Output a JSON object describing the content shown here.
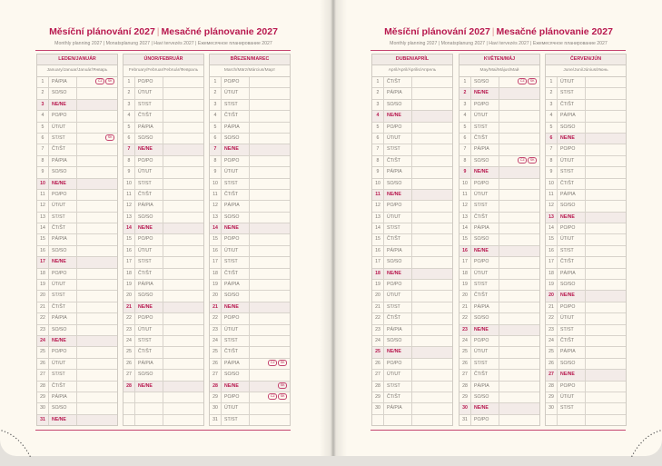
{
  "title_cz": "Měsíční plánování 2027",
  "title_sk": "Mesačné plánovanie 2027",
  "subtitle": "Monthly planning 2027 | Monatsplanung 2027 | Havi tervezés 2027 | Ежемесячное планирование 2027",
  "colors": {
    "accent": "#b8194f",
    "paper": "#fdf9f0",
    "grid": "#cfcac2"
  },
  "months": [
    {
      "name": "LEDEN/JANUÁR",
      "sub": "January/Januar/Január/Январь",
      "badges": {
        "1": [
          "CZ",
          "SK"
        ],
        "6": [
          "SK"
        ]
      },
      "days": [
        [
          "1",
          "PÁ/PIA"
        ],
        [
          "2",
          "SO/SO"
        ],
        [
          "3",
          "NE/NE"
        ],
        [
          "4",
          "PO/PO"
        ],
        [
          "5",
          "ÚT/UT"
        ],
        [
          "6",
          "ST/ST"
        ],
        [
          "7",
          "ČT/ŠT"
        ],
        [
          "8",
          "PÁ/PIA"
        ],
        [
          "9",
          "SO/SO"
        ],
        [
          "10",
          "NE/NE"
        ],
        [
          "11",
          "PO/PO"
        ],
        [
          "12",
          "ÚT/UT"
        ],
        [
          "13",
          "ST/ST"
        ],
        [
          "14",
          "ČT/ŠT"
        ],
        [
          "15",
          "PÁ/PIA"
        ],
        [
          "16",
          "SO/SO"
        ],
        [
          "17",
          "NE/NE"
        ],
        [
          "18",
          "PO/PO"
        ],
        [
          "19",
          "ÚT/UT"
        ],
        [
          "20",
          "ST/ST"
        ],
        [
          "21",
          "ČT/ŠT"
        ],
        [
          "22",
          "PÁ/PIA"
        ],
        [
          "23",
          "SO/SO"
        ],
        [
          "24",
          "NE/NE"
        ],
        [
          "25",
          "PO/PO"
        ],
        [
          "26",
          "ÚT/UT"
        ],
        [
          "27",
          "ST/ST"
        ],
        [
          "28",
          "ČT/ŠT"
        ],
        [
          "29",
          "PÁ/PIA"
        ],
        [
          "30",
          "SO/SO"
        ],
        [
          "31",
          "NE/NE"
        ]
      ]
    },
    {
      "name": "ÚNOR/FEBRUÁR",
      "sub": "February/Februar/Február/Февраль",
      "badges": {},
      "days": [
        [
          "1",
          "PO/PO"
        ],
        [
          "2",
          "ÚT/UT"
        ],
        [
          "3",
          "ST/ST"
        ],
        [
          "4",
          "ČT/ŠT"
        ],
        [
          "5",
          "PÁ/PIA"
        ],
        [
          "6",
          "SO/SO"
        ],
        [
          "7",
          "NE/NE"
        ],
        [
          "8",
          "PO/PO"
        ],
        [
          "9",
          "ÚT/UT"
        ],
        [
          "10",
          "ST/ST"
        ],
        [
          "11",
          "ČT/ŠT"
        ],
        [
          "12",
          "PÁ/PIA"
        ],
        [
          "13",
          "SO/SO"
        ],
        [
          "14",
          "NE/NE"
        ],
        [
          "15",
          "PO/PO"
        ],
        [
          "16",
          "ÚT/UT"
        ],
        [
          "17",
          "ST/ST"
        ],
        [
          "18",
          "ČT/ŠT"
        ],
        [
          "19",
          "PÁ/PIA"
        ],
        [
          "20",
          "SO/SO"
        ],
        [
          "21",
          "NE/NE"
        ],
        [
          "22",
          "PO/PO"
        ],
        [
          "23",
          "ÚT/UT"
        ],
        [
          "24",
          "ST/ST"
        ],
        [
          "25",
          "ČT/ŠT"
        ],
        [
          "26",
          "PÁ/PIA"
        ],
        [
          "27",
          "SO/SO"
        ],
        [
          "28",
          "NE/NE"
        ]
      ]
    },
    {
      "name": "BŘEZEN/MAREC",
      "sub": "March/März/Március/Март",
      "badges": {
        "26": [
          "CZ",
          "SK"
        ],
        "28": [
          "SK"
        ],
        "29": [
          "CZ",
          "SK"
        ]
      },
      "days": [
        [
          "1",
          "PO/PO"
        ],
        [
          "2",
          "ÚT/UT"
        ],
        [
          "3",
          "ST/ST"
        ],
        [
          "4",
          "ČT/ŠT"
        ],
        [
          "5",
          "PÁ/PIA"
        ],
        [
          "6",
          "SO/SO"
        ],
        [
          "7",
          "NE/NE"
        ],
        [
          "8",
          "PO/PO"
        ],
        [
          "9",
          "ÚT/UT"
        ],
        [
          "10",
          "ST/ST"
        ],
        [
          "11",
          "ČT/ŠT"
        ],
        [
          "12",
          "PÁ/PIA"
        ],
        [
          "13",
          "SO/SO"
        ],
        [
          "14",
          "NE/NE"
        ],
        [
          "15",
          "PO/PO"
        ],
        [
          "16",
          "ÚT/UT"
        ],
        [
          "17",
          "ST/ST"
        ],
        [
          "18",
          "ČT/ŠT"
        ],
        [
          "19",
          "PÁ/PIA"
        ],
        [
          "20",
          "SO/SO"
        ],
        [
          "21",
          "NE/NE"
        ],
        [
          "22",
          "PO/PO"
        ],
        [
          "23",
          "ÚT/UT"
        ],
        [
          "24",
          "ST/ST"
        ],
        [
          "25",
          "ČT/ŠT"
        ],
        [
          "26",
          "PÁ/PIA"
        ],
        [
          "27",
          "SO/SO"
        ],
        [
          "28",
          "NE/NE"
        ],
        [
          "29",
          "PO/PO"
        ],
        [
          "30",
          "ÚT/UT"
        ],
        [
          "31",
          "ST/ST"
        ]
      ]
    },
    {
      "name": "DUBEN/APRÍL",
      "sub": "April/April/Április/Апрель",
      "badges": {},
      "days": [
        [
          "1",
          "ČT/ŠT"
        ],
        [
          "2",
          "PÁ/PIA"
        ],
        [
          "3",
          "SO/SO"
        ],
        [
          "4",
          "NE/NE"
        ],
        [
          "5",
          "PO/PO"
        ],
        [
          "6",
          "ÚT/UT"
        ],
        [
          "7",
          "ST/ST"
        ],
        [
          "8",
          "ČT/ŠT"
        ],
        [
          "9",
          "PÁ/PIA"
        ],
        [
          "10",
          "SO/SO"
        ],
        [
          "11",
          "NE/NE"
        ],
        [
          "12",
          "PO/PO"
        ],
        [
          "13",
          "ÚT/UT"
        ],
        [
          "14",
          "ST/ST"
        ],
        [
          "15",
          "ČT/ŠT"
        ],
        [
          "16",
          "PÁ/PIA"
        ],
        [
          "17",
          "SO/SO"
        ],
        [
          "18",
          "NE/NE"
        ],
        [
          "19",
          "PO/PO"
        ],
        [
          "20",
          "ÚT/UT"
        ],
        [
          "21",
          "ST/ST"
        ],
        [
          "22",
          "ČT/ŠT"
        ],
        [
          "23",
          "PÁ/PIA"
        ],
        [
          "24",
          "SO/SO"
        ],
        [
          "25",
          "NE/NE"
        ],
        [
          "26",
          "PO/PO"
        ],
        [
          "27",
          "ÚT/UT"
        ],
        [
          "28",
          "ST/ST"
        ],
        [
          "29",
          "ČT/ŠT"
        ],
        [
          "30",
          "PÁ/PIA"
        ]
      ]
    },
    {
      "name": "KVĚTEN/MÁJ",
      "sub": "May/Mai/Május/Май",
      "badges": {
        "1": [
          "CZ",
          "SK"
        ],
        "8": [
          "CZ",
          "SK"
        ]
      },
      "days": [
        [
          "1",
          "SO/SO"
        ],
        [
          "2",
          "NE/NE"
        ],
        [
          "3",
          "PO/PO"
        ],
        [
          "4",
          "ÚT/UT"
        ],
        [
          "5",
          "ST/ST"
        ],
        [
          "6",
          "ČT/ŠT"
        ],
        [
          "7",
          "PÁ/PIA"
        ],
        [
          "8",
          "SO/SO"
        ],
        [
          "9",
          "NE/NE"
        ],
        [
          "10",
          "PO/PO"
        ],
        [
          "11",
          "ÚT/UT"
        ],
        [
          "12",
          "ST/ST"
        ],
        [
          "13",
          "ČT/ŠT"
        ],
        [
          "14",
          "PÁ/PIA"
        ],
        [
          "15",
          "SO/SO"
        ],
        [
          "16",
          "NE/NE"
        ],
        [
          "17",
          "PO/PO"
        ],
        [
          "18",
          "ÚT/UT"
        ],
        [
          "19",
          "ST/ST"
        ],
        [
          "20",
          "ČT/ŠT"
        ],
        [
          "21",
          "PÁ/PIA"
        ],
        [
          "22",
          "SO/SO"
        ],
        [
          "23",
          "NE/NE"
        ],
        [
          "24",
          "PO/PO"
        ],
        [
          "25",
          "ÚT/UT"
        ],
        [
          "26",
          "ST/ST"
        ],
        [
          "27",
          "ČT/ŠT"
        ],
        [
          "28",
          "PÁ/PIA"
        ],
        [
          "29",
          "SO/SO"
        ],
        [
          "30",
          "NE/NE"
        ],
        [
          "31",
          "PO/PO"
        ]
      ]
    },
    {
      "name": "ČERVEN/JÚN",
      "sub": "June/Juni/Június/Июнь",
      "badges": {},
      "days": [
        [
          "1",
          "ÚT/UT"
        ],
        [
          "2",
          "ST/ST"
        ],
        [
          "3",
          "ČT/ŠT"
        ],
        [
          "4",
          "PÁ/PIA"
        ],
        [
          "5",
          "SO/SO"
        ],
        [
          "6",
          "NE/NE"
        ],
        [
          "7",
          "PO/PO"
        ],
        [
          "8",
          "ÚT/UT"
        ],
        [
          "9",
          "ST/ST"
        ],
        [
          "10",
          "ČT/ŠT"
        ],
        [
          "11",
          "PÁ/PIA"
        ],
        [
          "12",
          "SO/SO"
        ],
        [
          "13",
          "NE/NE"
        ],
        [
          "14",
          "PO/PO"
        ],
        [
          "15",
          "ÚT/UT"
        ],
        [
          "16",
          "ST/ST"
        ],
        [
          "17",
          "ČT/ŠT"
        ],
        [
          "18",
          "PÁ/PIA"
        ],
        [
          "19",
          "SO/SO"
        ],
        [
          "20",
          "NE/NE"
        ],
        [
          "21",
          "PO/PO"
        ],
        [
          "22",
          "ÚT/UT"
        ],
        [
          "23",
          "ST/ST"
        ],
        [
          "24",
          "ČT/ŠT"
        ],
        [
          "25",
          "PÁ/PIA"
        ],
        [
          "26",
          "SO/SO"
        ],
        [
          "27",
          "NE/NE"
        ],
        [
          "28",
          "PO/PO"
        ],
        [
          "29",
          "ÚT/UT"
        ],
        [
          "30",
          "ST/ST"
        ]
      ]
    }
  ]
}
